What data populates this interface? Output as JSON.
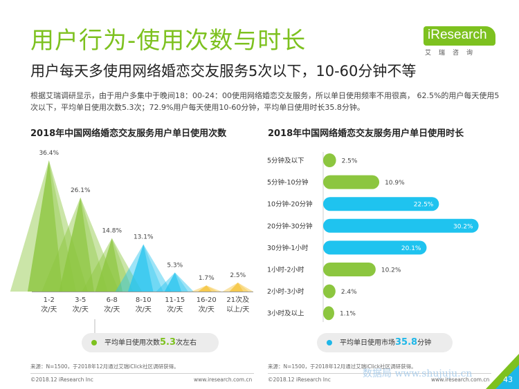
{
  "header": {
    "title": "用户行为-使用次数与时长",
    "subtitle": "用户每天多使用网络婚恋交友服务5次以下，10-60分钟不等",
    "description": "根据艾瑞调研显示，由于用户多集中于晚间18：00-24：00使用网络婚恋交友服务，所以单日使用频率不用很高， 62.5%的用户每天使用5次以下，平均单日使用次数5.3次；72.9%用户每天使用10-60分钟，平均单日使用时长35.8分钟。"
  },
  "logo": {
    "text": "iResearch",
    "sub": "艾瑞咨询"
  },
  "chart_data": [
    {
      "type": "area",
      "title": "2018年中国网络婚恋交友服务用户单日使用次数",
      "categories": [
        "1-2\n次/天",
        "3-5\n次/天",
        "6-8\n次/天",
        "8-10\n次/天",
        "11-15\n次/天",
        "16-20\n次/天",
        "21次及\n以上/天"
      ],
      "values": [
        36.4,
        26.1,
        14.8,
        13.1,
        5.3,
        1.7,
        2.5
      ],
      "value_labels": [
        "36.4%",
        "26.1%",
        "14.8%",
        "13.1%",
        "5.3%",
        "1.7%",
        "2.5%"
      ],
      "colors": [
        "#8cc63f",
        "#8cc63f",
        "#8cc63f",
        "#29c4ee",
        "#29c4ee",
        "#f5c33b",
        "#f5c33b"
      ],
      "ylim": [
        0,
        40
      ],
      "note_prefix": "平均单日使用次数",
      "note_value": "5.3",
      "note_suffix": "次左右"
    },
    {
      "type": "bar",
      "orientation": "horizontal",
      "title": "2018年中国网络婚恋交友服务用户单日使用时长",
      "categories": [
        "5分钟及以下",
        "5分钟-10分钟",
        "10分钟-20分钟",
        "20分钟-30分钟",
        "30分钟-1小时",
        "1小时-2小时",
        "2小时-3小时",
        "3小时及以上"
      ],
      "values": [
        2.5,
        10.9,
        22.5,
        30.2,
        20.1,
        10.2,
        2.4,
        1.1
      ],
      "value_labels": [
        "2.5%",
        "10.9%",
        "22.5%",
        "30.2%",
        "20.1%",
        "10.2%",
        "2.4%",
        "1.1%"
      ],
      "colors": [
        "#8cc63f",
        "#8cc63f",
        "#1fc3ef",
        "#1fc3ef",
        "#1fc3ef",
        "#8cc63f",
        "#8cc63f",
        "#8cc63f"
      ],
      "xlim": [
        0,
        32
      ],
      "note_prefix": "平均单日使用市场",
      "note_value": "35.8",
      "note_suffix": "分钟"
    }
  ],
  "sources": {
    "left": "来源：N=1500，于2018年12月通过艾瑞iClick社区调研获得。",
    "right": "来源：N=1500，于2018年12月通过艾瑞iClick社区调研获得。"
  },
  "footer": {
    "copyright_left": "©2018.12 iResearch Inc",
    "url_left": "www.iresearch.com.cn",
    "copyright_right": "©2018.12 iResearch Inc",
    "url_right": "www.iresearch.com.cn",
    "page": "43",
    "watermark": "数据局 www.shujuju.cn"
  }
}
